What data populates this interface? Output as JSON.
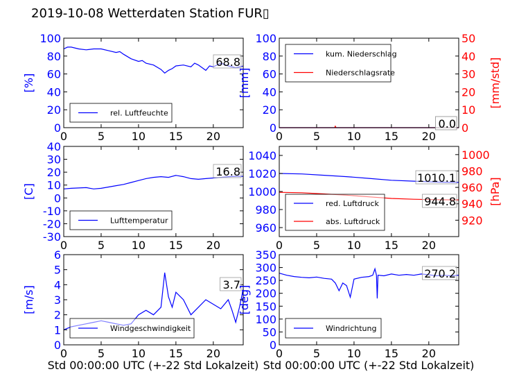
{
  "title": "2019-10-08 Wetterdaten Station FUR▯",
  "xlabel": "Std 00:00:00 UTC (+-22 Std Lokalzeit)",
  "colors": {
    "left_axis": "#0000ff",
    "right_axis": "#ff0000",
    "series_primary": "#0000ff",
    "series_secondary": "#ff0000"
  },
  "chart_data": [
    {
      "id": "humidity",
      "type": "line",
      "xlim": [
        0,
        24
      ],
      "ylim": [
        0,
        100
      ],
      "xticks": [
        0,
        5,
        10,
        15,
        20
      ],
      "yticks": [
        0,
        20,
        40,
        60,
        80,
        100
      ],
      "ylabel": "[%]",
      "legend": "bottom-left",
      "series": [
        {
          "name": "rel. Luftfeuchte",
          "color": "#0000ff",
          "points": [
            [
              0,
              88
            ],
            [
              0.5,
              90
            ],
            [
              1,
              90
            ],
            [
              2,
              88
            ],
            [
              3,
              87
            ],
            [
              4,
              88
            ],
            [
              5,
              88
            ],
            [
              6,
              86
            ],
            [
              7,
              84
            ],
            [
              7.5,
              85
            ],
            [
              8,
              82
            ],
            [
              9,
              77
            ],
            [
              10,
              74
            ],
            [
              10.5,
              75
            ],
            [
              11,
              72
            ],
            [
              12,
              70
            ],
            [
              13,
              65
            ],
            [
              13.5,
              61
            ],
            [
              14,
              64
            ],
            [
              14.5,
              66
            ],
            [
              15,
              69
            ],
            [
              16,
              70
            ],
            [
              17,
              68
            ],
            [
              17.5,
              72
            ],
            [
              18,
              70
            ],
            [
              19,
              64
            ],
            [
              19.5,
              69
            ],
            [
              20,
              68
            ],
            [
              21,
              72
            ],
            [
              22,
              69
            ],
            [
              23,
              67
            ],
            [
              24,
              68.8
            ]
          ]
        }
      ],
      "value_labels": [
        "68.8"
      ]
    },
    {
      "id": "precipitation",
      "type": "line",
      "xlim": [
        0,
        24
      ],
      "ylim": [
        0,
        100
      ],
      "xticks": [
        0,
        5,
        10,
        15,
        20
      ],
      "yticks": [
        0,
        20,
        40,
        60,
        80,
        100
      ],
      "ylabel": "[mm]",
      "y2lim": [
        0,
        50
      ],
      "y2ticks": [
        0,
        10,
        20,
        30,
        40,
        50
      ],
      "y2label": "[mm/std]",
      "legend": "top-left",
      "series": [
        {
          "name": "kum. Niederschlag",
          "color": "#0000ff",
          "axis": "left",
          "points": [
            [
              0,
              0
            ],
            [
              24,
              0
            ]
          ]
        },
        {
          "name": "Niederschlagsrate",
          "color": "#ff0000",
          "axis": "right",
          "points": [
            [
              0,
              0
            ],
            [
              7.4,
              0
            ],
            [
              7.5,
              0.8
            ],
            [
              7.6,
              0
            ],
            [
              24,
              0
            ]
          ]
        }
      ],
      "value_labels": [
        "0.0",
        "0.0"
      ]
    },
    {
      "id": "temperature",
      "type": "line",
      "xlim": [
        0,
        24
      ],
      "ylim": [
        -30,
        40
      ],
      "xticks": [
        0,
        5,
        10,
        15,
        20
      ],
      "yticks": [
        -30,
        -20,
        -10,
        0,
        10,
        20,
        30,
        40
      ],
      "ylabel": "[C]",
      "legend": "bottom-left",
      "series": [
        {
          "name": "Lufttemperatur",
          "color": "#0000ff",
          "points": [
            [
              0,
              7
            ],
            [
              1,
              7.5
            ],
            [
              3,
              8
            ],
            [
              4,
              7
            ],
            [
              5,
              7.5
            ],
            [
              6,
              8.5
            ],
            [
              7,
              9.5
            ],
            [
              8,
              10.5
            ],
            [
              9,
              12
            ],
            [
              10,
              13.5
            ],
            [
              11,
              15
            ],
            [
              12,
              16
            ],
            [
              13,
              16.5
            ],
            [
              14,
              16
            ],
            [
              15,
              17.5
            ],
            [
              16,
              16.5
            ],
            [
              17,
              15
            ],
            [
              18,
              14.5
            ],
            [
              19,
              15
            ],
            [
              20,
              15.5
            ],
            [
              21,
              16
            ],
            [
              22,
              16.5
            ],
            [
              23,
              16.8
            ],
            [
              24,
              16.8
            ]
          ]
        }
      ],
      "value_labels": [
        "16.8"
      ]
    },
    {
      "id": "pressure",
      "type": "line",
      "xlim": [
        0,
        24
      ],
      "ylim": [
        950,
        1050
      ],
      "xticks": [
        0,
        5,
        10,
        15,
        20
      ],
      "yticks": [
        960,
        980,
        1000,
        1020,
        1040
      ],
      "ylabel": "",
      "y2lim": [
        900,
        1010
      ],
      "y2ticks": [
        920,
        940,
        960,
        980,
        1000
      ],
      "y2label": "[hPa]",
      "legend": "bottom-left",
      "series": [
        {
          "name": "red. Luftdruck",
          "color": "#0000ff",
          "axis": "left",
          "points": [
            [
              0,
              1020
            ],
            [
              3,
              1019.5
            ],
            [
              6,
              1018
            ],
            [
              9,
              1016.5
            ],
            [
              12,
              1014.5
            ],
            [
              15,
              1012.5
            ],
            [
              18,
              1011.5
            ],
            [
              21,
              1010.5
            ],
            [
              24,
              1010.1
            ]
          ]
        },
        {
          "name": "abs. Luftdruck",
          "color": "#ff0000",
          "axis": "right",
          "points": [
            [
              0,
              954
            ],
            [
              3,
              953.5
            ],
            [
              6,
              952
            ],
            [
              9,
              950.5
            ],
            [
              12,
              948.5
            ],
            [
              15,
              946.5
            ],
            [
              18,
              945.5
            ],
            [
              21,
              945
            ],
            [
              24,
              944.8
            ]
          ]
        }
      ],
      "value_labels": [
        "1010.1",
        "944.8"
      ]
    },
    {
      "id": "windspeed",
      "type": "line",
      "xlim": [
        0,
        24
      ],
      "ylim": [
        0,
        6
      ],
      "xticks": [
        0,
        5,
        10,
        15,
        20
      ],
      "yticks": [
        0,
        1,
        2,
        3,
        4,
        5,
        6
      ],
      "ylabel": "[m/s]",
      "legend": "bottom-left",
      "series": [
        {
          "name": "Windgeschwindigkeit",
          "color": "#0000ff",
          "points": [
            [
              0,
              1.0
            ],
            [
              1,
              1.2
            ],
            [
              2,
              1.3
            ],
            [
              3,
              1.4
            ],
            [
              4,
              1.5
            ],
            [
              5,
              1.6
            ],
            [
              6,
              1.5
            ],
            [
              7,
              1.4
            ],
            [
              8,
              1.3
            ],
            [
              9,
              1.4
            ],
            [
              10,
              2.0
            ],
            [
              11,
              2.3
            ],
            [
              12,
              2.0
            ],
            [
              13,
              2.5
            ],
            [
              13.5,
              4.8
            ],
            [
              14,
              3.2
            ],
            [
              14.5,
              2.5
            ],
            [
              15,
              3.5
            ],
            [
              16,
              3.0
            ],
            [
              17,
              2.0
            ],
            [
              18,
              2.5
            ],
            [
              19,
              3.0
            ],
            [
              20,
              2.7
            ],
            [
              21,
              2.4
            ],
            [
              22,
              3.0
            ],
            [
              22.5,
              2.3
            ],
            [
              23,
              1.5
            ],
            [
              23.5,
              2.5
            ],
            [
              24,
              3.7
            ]
          ]
        }
      ],
      "value_labels": [
        "3.7"
      ]
    },
    {
      "id": "winddirection",
      "type": "line",
      "xlim": [
        0,
        24
      ],
      "ylim": [
        0,
        350
      ],
      "xticks": [
        0,
        5,
        10,
        15,
        20
      ],
      "yticks": [
        0,
        50,
        100,
        150,
        200,
        250,
        300,
        350
      ],
      "ylabel": "[deg]",
      "legend": "bottom-left",
      "series": [
        {
          "name": "Windrichtung",
          "color": "#0000ff",
          "points": [
            [
              0,
              278
            ],
            [
              1,
              270
            ],
            [
              2,
              265
            ],
            [
              3,
              262
            ],
            [
              4,
              260
            ],
            [
              5,
              263
            ],
            [
              6,
              258
            ],
            [
              7,
              255
            ],
            [
              7.5,
              240
            ],
            [
              8,
              210
            ],
            [
              8.5,
              240
            ],
            [
              9,
              230
            ],
            [
              9.5,
              185
            ],
            [
              10,
              255
            ],
            [
              11,
              262
            ],
            [
              12,
              265
            ],
            [
              12.5,
              270
            ],
            [
              12.8,
              295
            ],
            [
              13,
              270
            ],
            [
              13.1,
              180
            ],
            [
              13.2,
              270
            ],
            [
              14,
              268
            ],
            [
              15,
              275
            ],
            [
              16,
              270
            ],
            [
              17,
              273
            ],
            [
              18,
              270
            ],
            [
              19,
              275
            ],
            [
              20,
              272
            ],
            [
              21,
              268
            ],
            [
              22,
              270
            ],
            [
              23,
              268
            ],
            [
              24,
              270.2
            ]
          ]
        }
      ],
      "value_labels": [
        "270.2"
      ]
    }
  ]
}
